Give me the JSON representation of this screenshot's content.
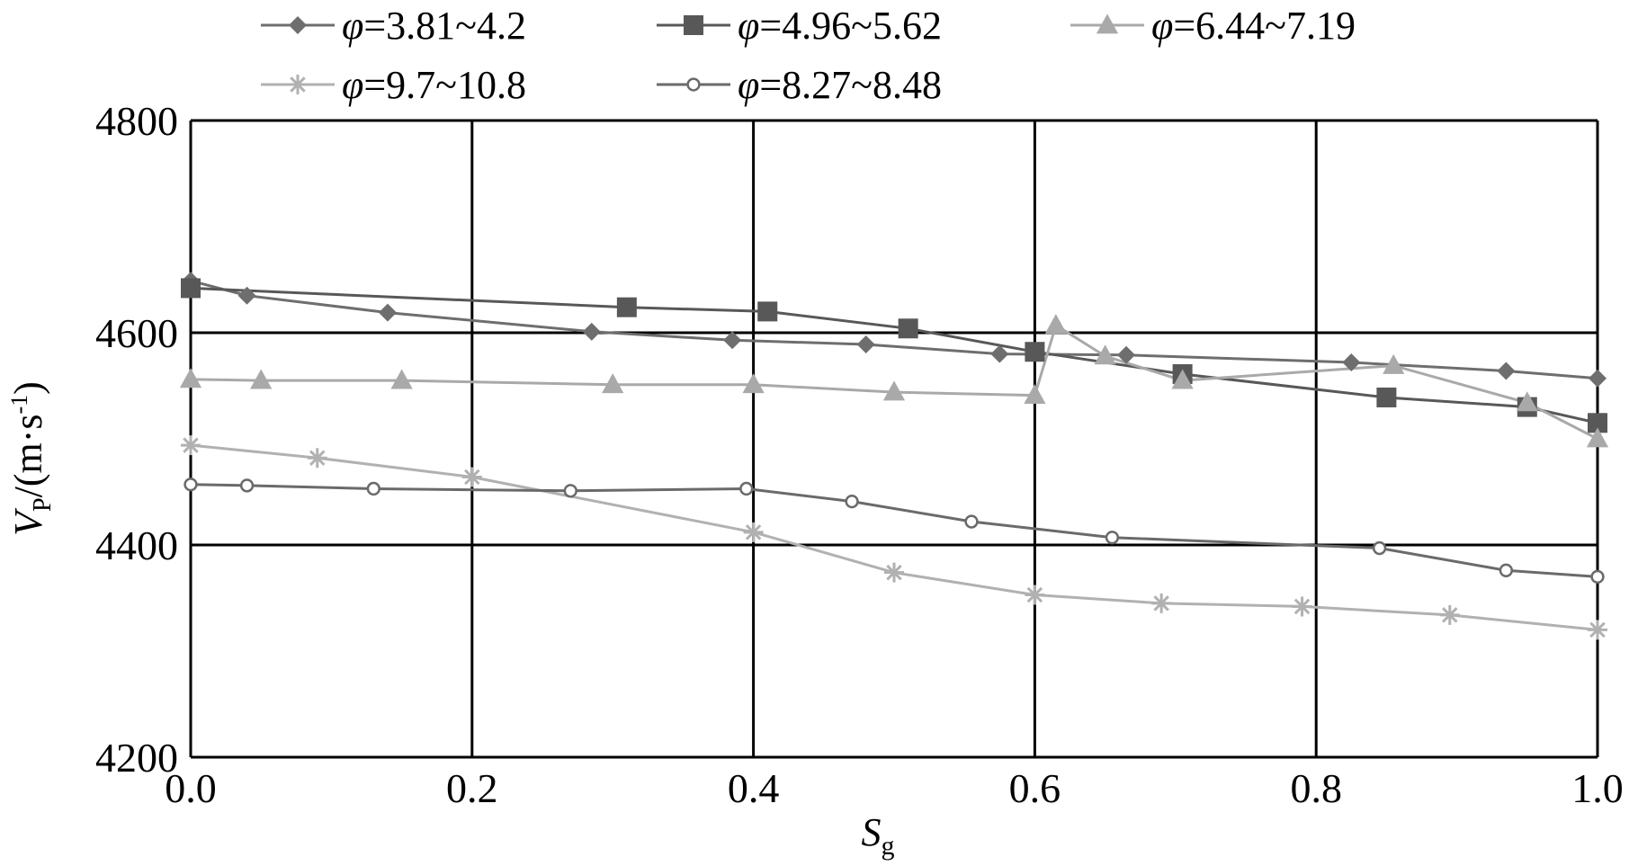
{
  "chart_data": {
    "type": "line",
    "xlabel": "S",
    "xlabel_sub": "g",
    "ylabel": "V",
    "ylabel_sub": "P",
    "ylabel_unit": "/(m·s",
    "ylabel_sup": "-1",
    "ylabel_close": ")",
    "xlim": [
      0.0,
      1.0
    ],
    "ylim": [
      4200,
      4800
    ],
    "xticks": [
      0.0,
      0.2,
      0.4,
      0.6,
      0.8,
      1.0
    ],
    "xtick_labels": [
      "0.0",
      "0.2",
      "0.4",
      "0.6",
      "0.8",
      "1.0"
    ],
    "yticks": [
      4200,
      4400,
      4600,
      4800
    ],
    "ytick_labels": [
      "4200",
      "4400",
      "4600",
      "4800"
    ],
    "grid": true,
    "legend_position": "top",
    "series": [
      {
        "name": "φ=3.81~4.2",
        "symbol": "φ",
        "range": "=3.81~4.2",
        "marker": "diamond",
        "color": "#6e6e6e",
        "x": [
          0.0,
          0.04,
          0.14,
          0.285,
          0.385,
          0.48,
          0.575,
          0.665,
          0.825,
          0.935,
          1.0
        ],
        "y": [
          4649,
          4635,
          4619,
          4601,
          4593,
          4589,
          4580,
          4579,
          4572,
          4564,
          4557
        ]
      },
      {
        "name": "φ=4.96~5.62",
        "symbol": "φ",
        "range": "=4.96~5.62",
        "marker": "square",
        "color": "#585858",
        "x": [
          0.0,
          0.31,
          0.41,
          0.51,
          0.6,
          0.705,
          0.85,
          0.95,
          1.0
        ],
        "y": [
          4642,
          4624,
          4620,
          4604,
          4582,
          4561,
          4539,
          4530,
          4515
        ]
      },
      {
        "name": "φ=6.44~7.19",
        "symbol": "φ",
        "range": "=6.44~7.19",
        "marker": "triangle",
        "color": "#a9a9a9",
        "x": [
          0.0,
          0.05,
          0.15,
          0.3,
          0.4,
          0.5,
          0.6,
          0.615,
          0.65,
          0.705,
          0.855,
          0.95,
          1.0
        ],
        "y": [
          4556,
          4555,
          4555,
          4551,
          4551,
          4544,
          4541,
          4607,
          4578,
          4555,
          4569,
          4534,
          4500
        ]
      },
      {
        "name": "φ=9.7~10.8",
        "symbol": "φ",
        "range": "=9.7~10.8",
        "marker": "asterisk",
        "color": "#b1b1b1",
        "x": [
          0.0,
          0.09,
          0.2,
          0.4,
          0.5,
          0.6,
          0.69,
          0.79,
          0.895,
          1.0
        ],
        "y": [
          4494,
          4482,
          4464,
          4412,
          4374,
          4353,
          4345,
          4342,
          4334,
          4320
        ]
      },
      {
        "name": "φ=8.27~8.48",
        "symbol": "φ",
        "range": "=8.27~8.48",
        "marker": "circle",
        "color": "#6a6a6a",
        "x": [
          0.0,
          0.04,
          0.13,
          0.27,
          0.395,
          0.47,
          0.555,
          0.655,
          0.845,
          0.935,
          1.0
        ],
        "y": [
          4457,
          4456,
          4453,
          4451,
          4453,
          4441,
          4422,
          4407,
          4397,
          4376,
          4370
        ]
      }
    ]
  }
}
